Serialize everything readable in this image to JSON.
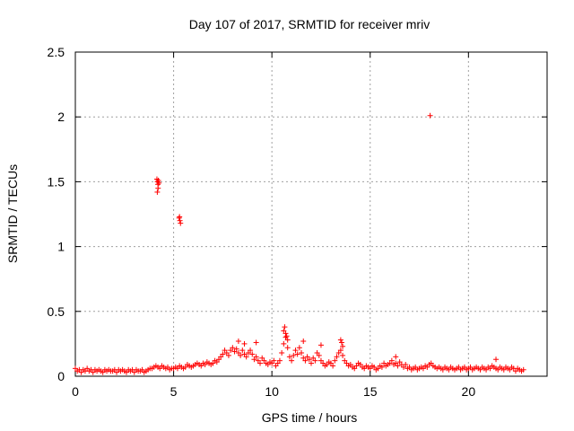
{
  "chart_data": {
    "type": "scatter",
    "title": "Day 107 of 2017, SRMTID for receiver mriv",
    "xlabel": "GPS time / hours",
    "ylabel": "SRMTID / TECUs",
    "xlim": [
      0,
      24
    ],
    "ylim": [
      0,
      2.5
    ],
    "xticks": [
      0,
      5,
      10,
      15,
      20
    ],
    "xtick_labels": [
      "0",
      "5",
      "10",
      "15",
      "20"
    ],
    "yticks": [
      0,
      0.5,
      1,
      1.5,
      2,
      2.5
    ],
    "ytick_labels": [
      "0",
      "0.5",
      "1",
      "1.5",
      "2",
      "2.5"
    ],
    "grid": true,
    "marker": "+",
    "series": [
      {
        "name": "SRMTID",
        "color": "#ff0000",
        "x": [
          0.0,
          0.1,
          0.2,
          0.3,
          0.4,
          0.5,
          0.6,
          0.7,
          0.8,
          0.9,
          1.0,
          1.1,
          1.2,
          1.3,
          1.4,
          1.5,
          1.6,
          1.7,
          1.8,
          1.9,
          2.0,
          2.1,
          2.2,
          2.3,
          2.4,
          2.5,
          2.6,
          2.7,
          2.8,
          2.9,
          3.0,
          3.1,
          3.2,
          3.3,
          3.4,
          3.5,
          3.6,
          3.7,
          3.8,
          3.9,
          4.0,
          4.1,
          4.2,
          4.3,
          4.4,
          4.5,
          4.6,
          4.7,
          4.8,
          4.9,
          5.0,
          5.1,
          5.2,
          5.3,
          5.4,
          5.5,
          5.6,
          5.7,
          5.8,
          5.9,
          6.0,
          6.1,
          6.2,
          6.3,
          6.4,
          6.5,
          6.6,
          6.7,
          6.8,
          6.9,
          7.0,
          7.1,
          7.2,
          7.3,
          7.4,
          7.5,
          7.6,
          7.7,
          7.8,
          7.9,
          8.0,
          8.1,
          8.2,
          8.3,
          8.4,
          8.5,
          8.6,
          8.7,
          8.8,
          8.9,
          9.0,
          9.1,
          9.2,
          9.3,
          9.4,
          9.5,
          9.6,
          9.7,
          9.8,
          9.9,
          10.0,
          10.1,
          10.2,
          10.3,
          10.4,
          10.5,
          10.6,
          10.7,
          10.8,
          10.9,
          11.0,
          11.1,
          11.2,
          11.3,
          11.4,
          11.5,
          11.6,
          11.7,
          11.8,
          11.9,
          12.0,
          12.1,
          12.2,
          12.3,
          12.4,
          12.5,
          12.6,
          12.7,
          12.8,
          12.9,
          13.0,
          13.1,
          13.2,
          13.3,
          13.4,
          13.5,
          13.6,
          13.7,
          13.8,
          13.9,
          14.0,
          14.1,
          14.2,
          14.3,
          14.4,
          14.5,
          14.6,
          14.7,
          14.8,
          14.9,
          15.0,
          15.1,
          15.2,
          15.3,
          15.4,
          15.5,
          15.6,
          15.7,
          15.8,
          15.9,
          16.0,
          16.1,
          16.2,
          16.3,
          16.4,
          16.5,
          16.6,
          16.7,
          16.8,
          16.9,
          17.0,
          17.1,
          17.2,
          17.3,
          17.4,
          17.5,
          17.6,
          17.7,
          17.8,
          17.9,
          18.0,
          18.1,
          18.2,
          18.3,
          18.4,
          18.5,
          18.6,
          18.7,
          18.8,
          18.9,
          19.0,
          19.1,
          19.2,
          19.3,
          19.4,
          19.5,
          19.6,
          19.7,
          19.8,
          19.9,
          20.0,
          20.1,
          20.2,
          20.3,
          20.4,
          20.5,
          20.6,
          20.7,
          20.8,
          20.9,
          21.0,
          21.1,
          21.2,
          21.3,
          21.4,
          21.5,
          21.6,
          21.7,
          21.8,
          21.9,
          22.0,
          22.1,
          22.2,
          22.3,
          22.4,
          22.5,
          22.6,
          22.7,
          22.8,
          4.15,
          4.18,
          4.2,
          4.22,
          4.25,
          4.17,
          4.21,
          5.3,
          5.32,
          5.35,
          5.28,
          18.05,
          8.3,
          8.6,
          9.2,
          10.6,
          10.65,
          10.7,
          10.75,
          10.8,
          11.6,
          12.5,
          13.5,
          13.55,
          13.6,
          16.3,
          21.4
        ],
        "y": [
          0.06,
          0.04,
          0.05,
          0.03,
          0.05,
          0.04,
          0.06,
          0.04,
          0.05,
          0.03,
          0.05,
          0.04,
          0.05,
          0.04,
          0.03,
          0.05,
          0.04,
          0.05,
          0.04,
          0.04,
          0.05,
          0.03,
          0.05,
          0.04,
          0.05,
          0.04,
          0.03,
          0.05,
          0.04,
          0.05,
          0.03,
          0.05,
          0.04,
          0.04,
          0.05,
          0.03,
          0.04,
          0.05,
          0.06,
          0.06,
          0.07,
          0.08,
          0.07,
          0.06,
          0.08,
          0.07,
          0.06,
          0.07,
          0.05,
          0.06,
          0.06,
          0.07,
          0.06,
          0.08,
          0.07,
          0.06,
          0.07,
          0.09,
          0.08,
          0.07,
          0.08,
          0.09,
          0.1,
          0.09,
          0.08,
          0.1,
          0.09,
          0.11,
          0.1,
          0.09,
          0.1,
          0.12,
          0.11,
          0.13,
          0.15,
          0.17,
          0.2,
          0.18,
          0.16,
          0.2,
          0.22,
          0.19,
          0.21,
          0.18,
          0.16,
          0.2,
          0.17,
          0.15,
          0.18,
          0.2,
          0.17,
          0.13,
          0.15,
          0.12,
          0.1,
          0.14,
          0.12,
          0.1,
          0.09,
          0.11,
          0.1,
          0.12,
          0.08,
          0.1,
          0.12,
          0.18,
          0.25,
          0.3,
          0.22,
          0.15,
          0.12,
          0.16,
          0.2,
          0.17,
          0.22,
          0.18,
          0.14,
          0.12,
          0.15,
          0.13,
          0.1,
          0.14,
          0.12,
          0.18,
          0.16,
          0.12,
          0.1,
          0.08,
          0.09,
          0.11,
          0.1,
          0.08,
          0.12,
          0.15,
          0.18,
          0.2,
          0.16,
          0.12,
          0.1,
          0.08,
          0.09,
          0.07,
          0.06,
          0.08,
          0.1,
          0.09,
          0.07,
          0.06,
          0.08,
          0.07,
          0.06,
          0.08,
          0.07,
          0.05,
          0.06,
          0.08,
          0.07,
          0.1,
          0.08,
          0.09,
          0.1,
          0.12,
          0.09,
          0.1,
          0.08,
          0.11,
          0.09,
          0.07,
          0.09,
          0.06,
          0.07,
          0.05,
          0.06,
          0.07,
          0.05,
          0.06,
          0.07,
          0.06,
          0.08,
          0.07,
          0.09,
          0.1,
          0.08,
          0.07,
          0.06,
          0.07,
          0.06,
          0.05,
          0.07,
          0.06,
          0.05,
          0.07,
          0.06,
          0.05,
          0.06,
          0.07,
          0.05,
          0.06,
          0.07,
          0.05,
          0.06,
          0.07,
          0.05,
          0.06,
          0.07,
          0.06,
          0.05,
          0.07,
          0.06,
          0.05,
          0.07,
          0.06,
          0.08,
          0.07,
          0.06,
          0.05,
          0.07,
          0.06,
          0.05,
          0.07,
          0.06,
          0.05,
          0.07,
          0.06,
          0.04,
          0.06,
          0.05,
          0.04,
          0.05,
          1.52,
          1.5,
          1.48,
          1.51,
          1.49,
          1.42,
          1.45,
          1.23,
          1.2,
          1.18,
          1.22,
          2.01,
          0.27,
          0.25,
          0.26,
          0.35,
          0.38,
          0.33,
          0.31,
          0.28,
          0.27,
          0.24,
          0.28,
          0.26,
          0.23,
          0.15,
          0.13
        ]
      }
    ]
  }
}
